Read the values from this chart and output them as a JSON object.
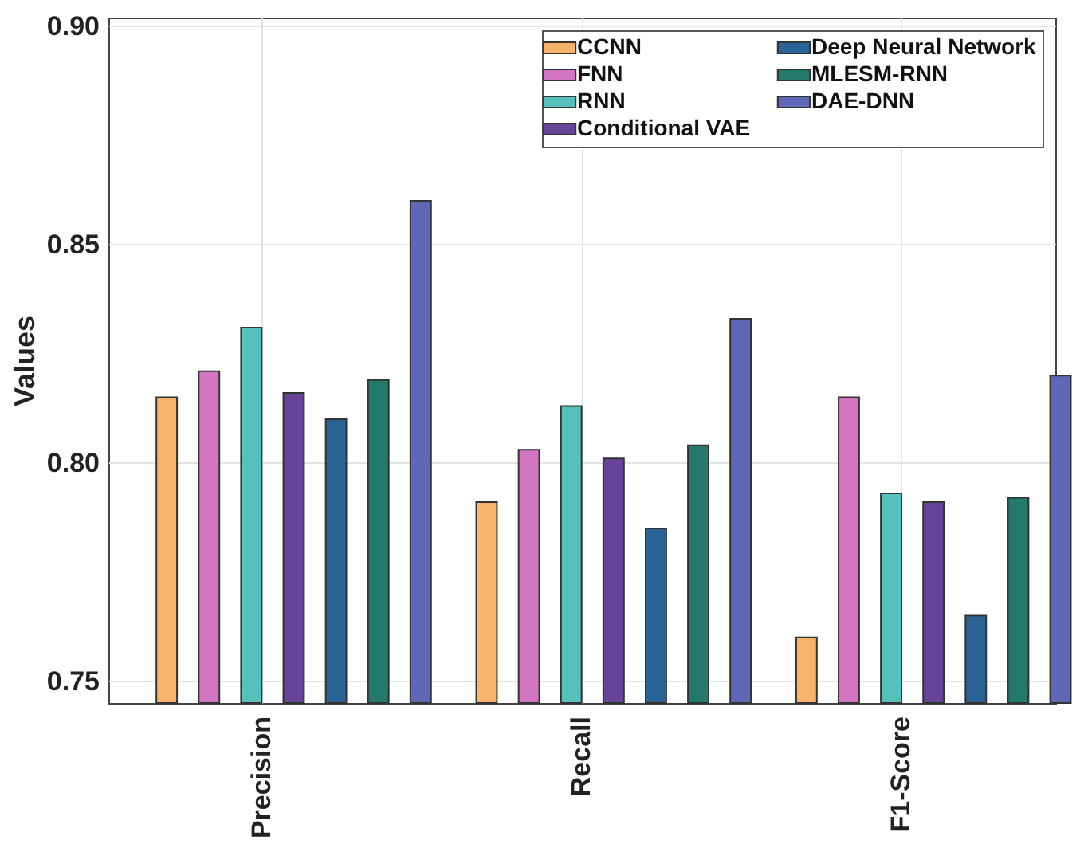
{
  "chart_data": {
    "type": "bar",
    "ylabel": "Values",
    "categories": [
      "Precision",
      "Recall",
      "F1-Score"
    ],
    "series": [
      {
        "name": "CCNN",
        "color": "#f8b36a",
        "values": [
          0.815,
          0.791,
          0.76
        ]
      },
      {
        "name": "FNN",
        "color": "#d276c2",
        "values": [
          0.821,
          0.803,
          0.815
        ]
      },
      {
        "name": "RNN",
        "color": "#55c0bc",
        "values": [
          0.831,
          0.813,
          0.793
        ]
      },
      {
        "name": "Conditional VAE",
        "color": "#67449a",
        "values": [
          0.816,
          0.801,
          0.791
        ]
      },
      {
        "name": "Deep Neural Network",
        "color": "#2a6496",
        "values": [
          0.81,
          0.785,
          0.765
        ]
      },
      {
        "name": "MLESM-RNN",
        "color": "#237a6c",
        "values": [
          0.819,
          0.804,
          0.792
        ]
      },
      {
        "name": "DAE-DNN",
        "color": "#5e68b6",
        "values": [
          0.86,
          0.833,
          0.82
        ]
      }
    ],
    "ylim": [
      0.745,
      0.902
    ],
    "yticks": [
      {
        "value": 0.75,
        "label": "0.75"
      },
      {
        "value": 0.8,
        "label": "0.80"
      },
      {
        "value": 0.85,
        "label": "0.85"
      },
      {
        "value": 0.9,
        "label": "0.90"
      }
    ],
    "grid": true,
    "legend": "top right"
  }
}
